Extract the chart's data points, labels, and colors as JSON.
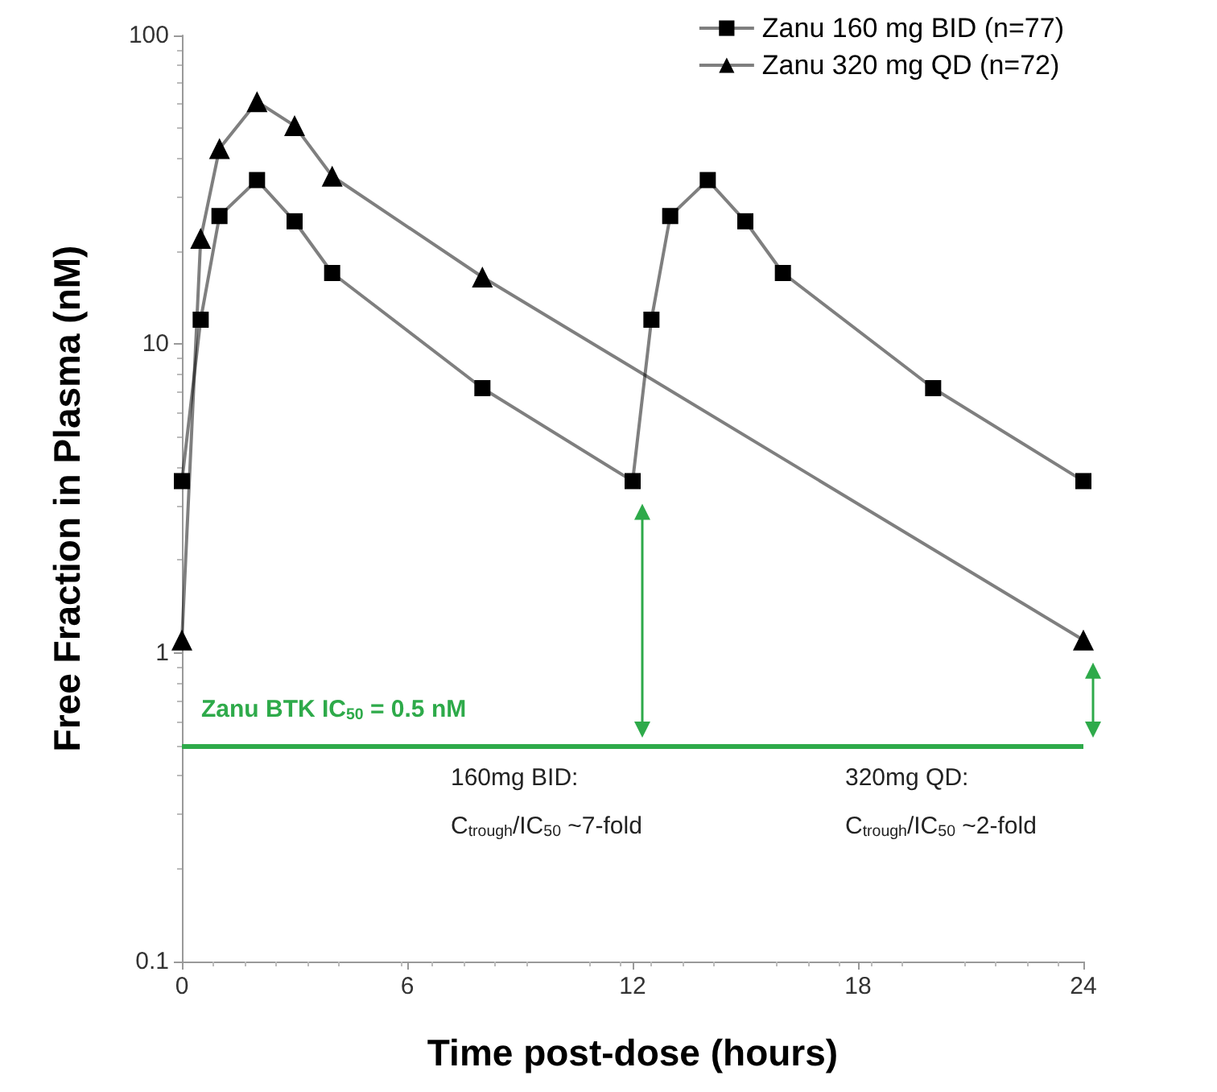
{
  "chart_data": {
    "type": "line",
    "xlabel": "Time post-dose (hours)",
    "ylabel": "Free Fraction in Plasma (nM)",
    "xlim": [
      0,
      24
    ],
    "xticks": [
      0,
      6,
      12,
      18,
      24
    ],
    "ylim": [
      0.1,
      100
    ],
    "yticks": [
      0.1,
      1,
      10,
      100
    ],
    "log": "y",
    "grid": false,
    "legend": "top right",
    "series": [
      {
        "name": "Zanu 160 mg BID (n=77)",
        "color": "#000000",
        "marker": "square",
        "x": [
          0,
          0.5,
          1,
          2,
          3,
          4,
          8,
          12,
          12.5,
          13,
          14,
          15,
          16,
          20,
          24
        ],
        "values": [
          3.6,
          12,
          26,
          34,
          25,
          17,
          7.2,
          3.6,
          12,
          26,
          34,
          25,
          17,
          7.2,
          3.6
        ]
      },
      {
        "name": "Zanu 320 mg QD (n=72)",
        "color": "#000000",
        "marker": "triangle",
        "x": [
          0,
          0.5,
          1,
          2,
          3,
          4,
          8,
          24
        ],
        "values": [
          1.1,
          22,
          43,
          61,
          51,
          35,
          16.5,
          1.1
        ]
      }
    ],
    "ref_lines": [
      {
        "axis": "y",
        "value": 0.5,
        "label": "Zanu BTK IC$_{50}$ = 0.5 nM",
        "color": "#2eaa4a"
      }
    ],
    "annotations": [
      "160mg BID:\nC$_{trough}$/IC$_{50}$ ~7-fold",
      "320mg QD:\nC$_{trough}$/IC$_{50}$ ~2-fold"
    ]
  }
}
